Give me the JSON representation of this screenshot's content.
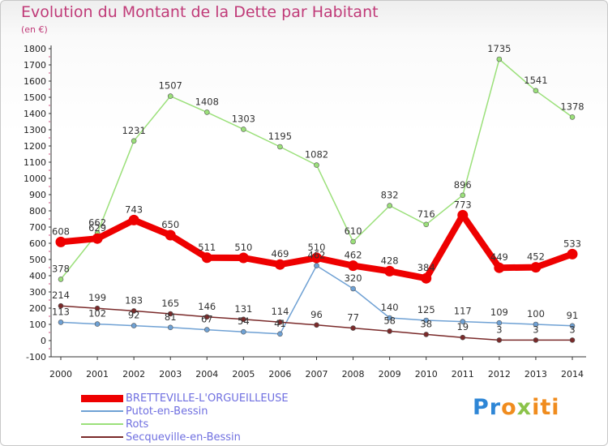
{
  "header": {
    "title": "Evolution du Montant de la Dette par Habitant",
    "unit": "(en €)"
  },
  "logo": {
    "parts": [
      "Pr",
      "o",
      "x",
      "iti"
    ]
  },
  "chart_data": {
    "type": "line",
    "title": "Evolution du Montant de la Dette par Habitant",
    "subtitle": "(en €)",
    "xlabel": "",
    "ylabel": "",
    "ylim": [
      -100,
      1800
    ],
    "yticks": [
      -100,
      0,
      100,
      200,
      300,
      400,
      500,
      600,
      700,
      800,
      900,
      1000,
      1100,
      1200,
      1300,
      1400,
      1500,
      1600,
      1700,
      1800
    ],
    "categories": [
      "2000",
      "2001",
      "2002",
      "2003",
      "2004",
      "2005",
      "2006",
      "2007",
      "2008",
      "2009",
      "2010",
      "2011",
      "2012",
      "2013",
      "2014"
    ],
    "grid": false,
    "legend": "bottom-left",
    "series": [
      {
        "name": "BRETTEVILLE-L'ORGUEILLEUSE",
        "color": "#ee0000",
        "width": 8,
        "values": [
          608,
          629,
          743,
          650,
          511,
          510,
          469,
          510,
          462,
          428,
          384,
          773,
          449,
          452,
          533
        ]
      },
      {
        "name": "Putot-en-Bessin",
        "color": "#6fa1d4",
        "width": 1.5,
        "values": [
          113,
          102,
          92,
          81,
          67,
          54,
          41,
          462,
          320,
          140,
          125,
          117,
          109,
          100,
          91
        ]
      },
      {
        "name": "Rots",
        "color": "#9be07a",
        "width": 1.5,
        "values": [
          378,
          662,
          1231,
          1507,
          1408,
          1303,
          1195,
          1082,
          610,
          832,
          716,
          896,
          1735,
          1541,
          1378
        ]
      },
      {
        "name": "Secqueville-en-Bessin",
        "color": "#7a2a2a",
        "width": 1.5,
        "values": [
          214,
          199,
          183,
          165,
          146,
          131,
          114,
          96,
          77,
          58,
          38,
          19,
          3,
          3,
          3
        ]
      }
    ]
  }
}
